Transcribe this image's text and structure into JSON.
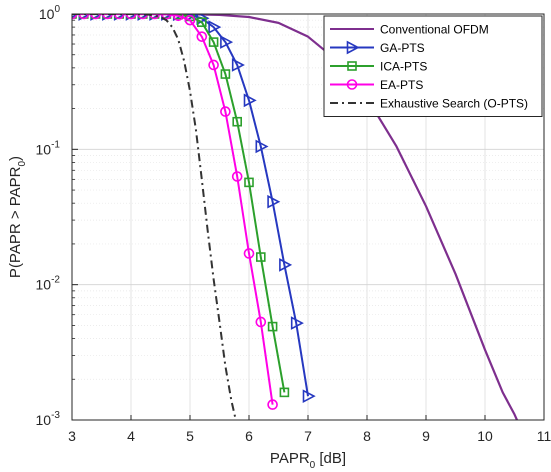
{
  "chart_data": {
    "type": "line",
    "x_scale": "linear",
    "y_scale": "log",
    "xlim": [
      3,
      11
    ],
    "ylim": [
      0.001,
      1
    ],
    "x_ticks": [
      3,
      4,
      5,
      6,
      7,
      8,
      9,
      10,
      11
    ],
    "x_tick_labels": [
      "3",
      "4",
      "5",
      "6",
      "7",
      "8",
      "9",
      "10",
      "11"
    ],
    "y_ticks": [
      0.001,
      0.01,
      0.1,
      1
    ],
    "y_tick_labels": [
      {
        "base": "10",
        "exp": "-3"
      },
      {
        "base": "10",
        "exp": "-2"
      },
      {
        "base": "10",
        "exp": "-1"
      },
      {
        "base": "10",
        "exp": "0"
      }
    ],
    "xlabel": {
      "main": "PAPR",
      "sub": "0",
      "tail": " [dB]"
    },
    "ylabel": {
      "main": "P(PAPR > PAPR",
      "sub": "0",
      "tail": ")"
    },
    "grid": true,
    "legend_position": "top-right",
    "series": [
      {
        "name": "Conventional OFDM",
        "color": "#7E2F8E",
        "line_style": "solid",
        "marker": "none",
        "x": [
          3,
          4,
          5,
          5.5,
          6,
          6.5,
          7,
          7.5,
          8,
          8.5,
          9,
          9.5,
          10,
          10.3,
          10.5,
          10.7
        ],
        "y": [
          1,
          1,
          0.995,
          0.985,
          0.95,
          0.86,
          0.68,
          0.45,
          0.24,
          0.105,
          0.038,
          0.012,
          0.0033,
          0.0016,
          0.0011,
          0.0007
        ]
      },
      {
        "name": "GA-PTS",
        "color": "#2638C0",
        "line_style": "solid",
        "marker": "triangle-right",
        "x": [
          3,
          3.2,
          3.4,
          3.6,
          3.8,
          4,
          4.2,
          4.4,
          4.6,
          4.8,
          5,
          5.2,
          5.4,
          5.6,
          5.8,
          6,
          6.2,
          6.4,
          6.6,
          6.8,
          7
        ],
        "y": [
          1,
          1,
          1,
          1,
          1,
          1,
          1,
          1,
          1,
          0.995,
          0.98,
          0.93,
          0.8,
          0.62,
          0.42,
          0.23,
          0.105,
          0.041,
          0.014,
          0.0052,
          0.0015
        ]
      },
      {
        "name": "ICA-PTS",
        "color": "#2CA02C",
        "line_style": "solid",
        "marker": "square",
        "x": [
          3,
          3.2,
          3.4,
          3.6,
          3.8,
          4,
          4.2,
          4.4,
          4.6,
          4.8,
          5,
          5.2,
          5.4,
          5.6,
          5.8,
          6,
          6.2,
          6.4,
          6.6
        ],
        "y": [
          1,
          1,
          1,
          1,
          1,
          1,
          1,
          1,
          1,
          0.99,
          0.96,
          0.87,
          0.62,
          0.36,
          0.16,
          0.057,
          0.016,
          0.0049,
          0.0016
        ]
      },
      {
        "name": "EA-PTS",
        "color": "#FF00E6",
        "line_style": "solid",
        "marker": "circle",
        "x": [
          3,
          3.2,
          3.4,
          3.6,
          3.8,
          4,
          4.2,
          4.4,
          4.6,
          4.8,
          5,
          5.2,
          5.4,
          5.6,
          5.8,
          6,
          6.2,
          6.4
        ],
        "y": [
          1,
          1,
          1,
          1,
          1,
          1,
          1,
          1,
          0.995,
          0.97,
          0.9,
          0.68,
          0.42,
          0.19,
          0.063,
          0.017,
          0.0053,
          0.0013
        ]
      },
      {
        "name": "Exhaustive Search (O-PTS)",
        "color": "#333333",
        "line_style": "dash-dot",
        "marker": "none",
        "x": [
          3,
          4,
          4.3,
          4.5,
          4.6,
          4.7,
          4.8,
          4.9,
          5,
          5.1,
          5.2,
          5.3,
          5.4,
          5.5,
          5.6,
          5.7,
          5.8
        ],
        "y": [
          1,
          1,
          0.99,
          0.95,
          0.9,
          0.8,
          0.65,
          0.45,
          0.27,
          0.14,
          0.06,
          0.025,
          0.011,
          0.0053,
          0.0025,
          0.0014,
          0.0009
        ]
      }
    ]
  }
}
